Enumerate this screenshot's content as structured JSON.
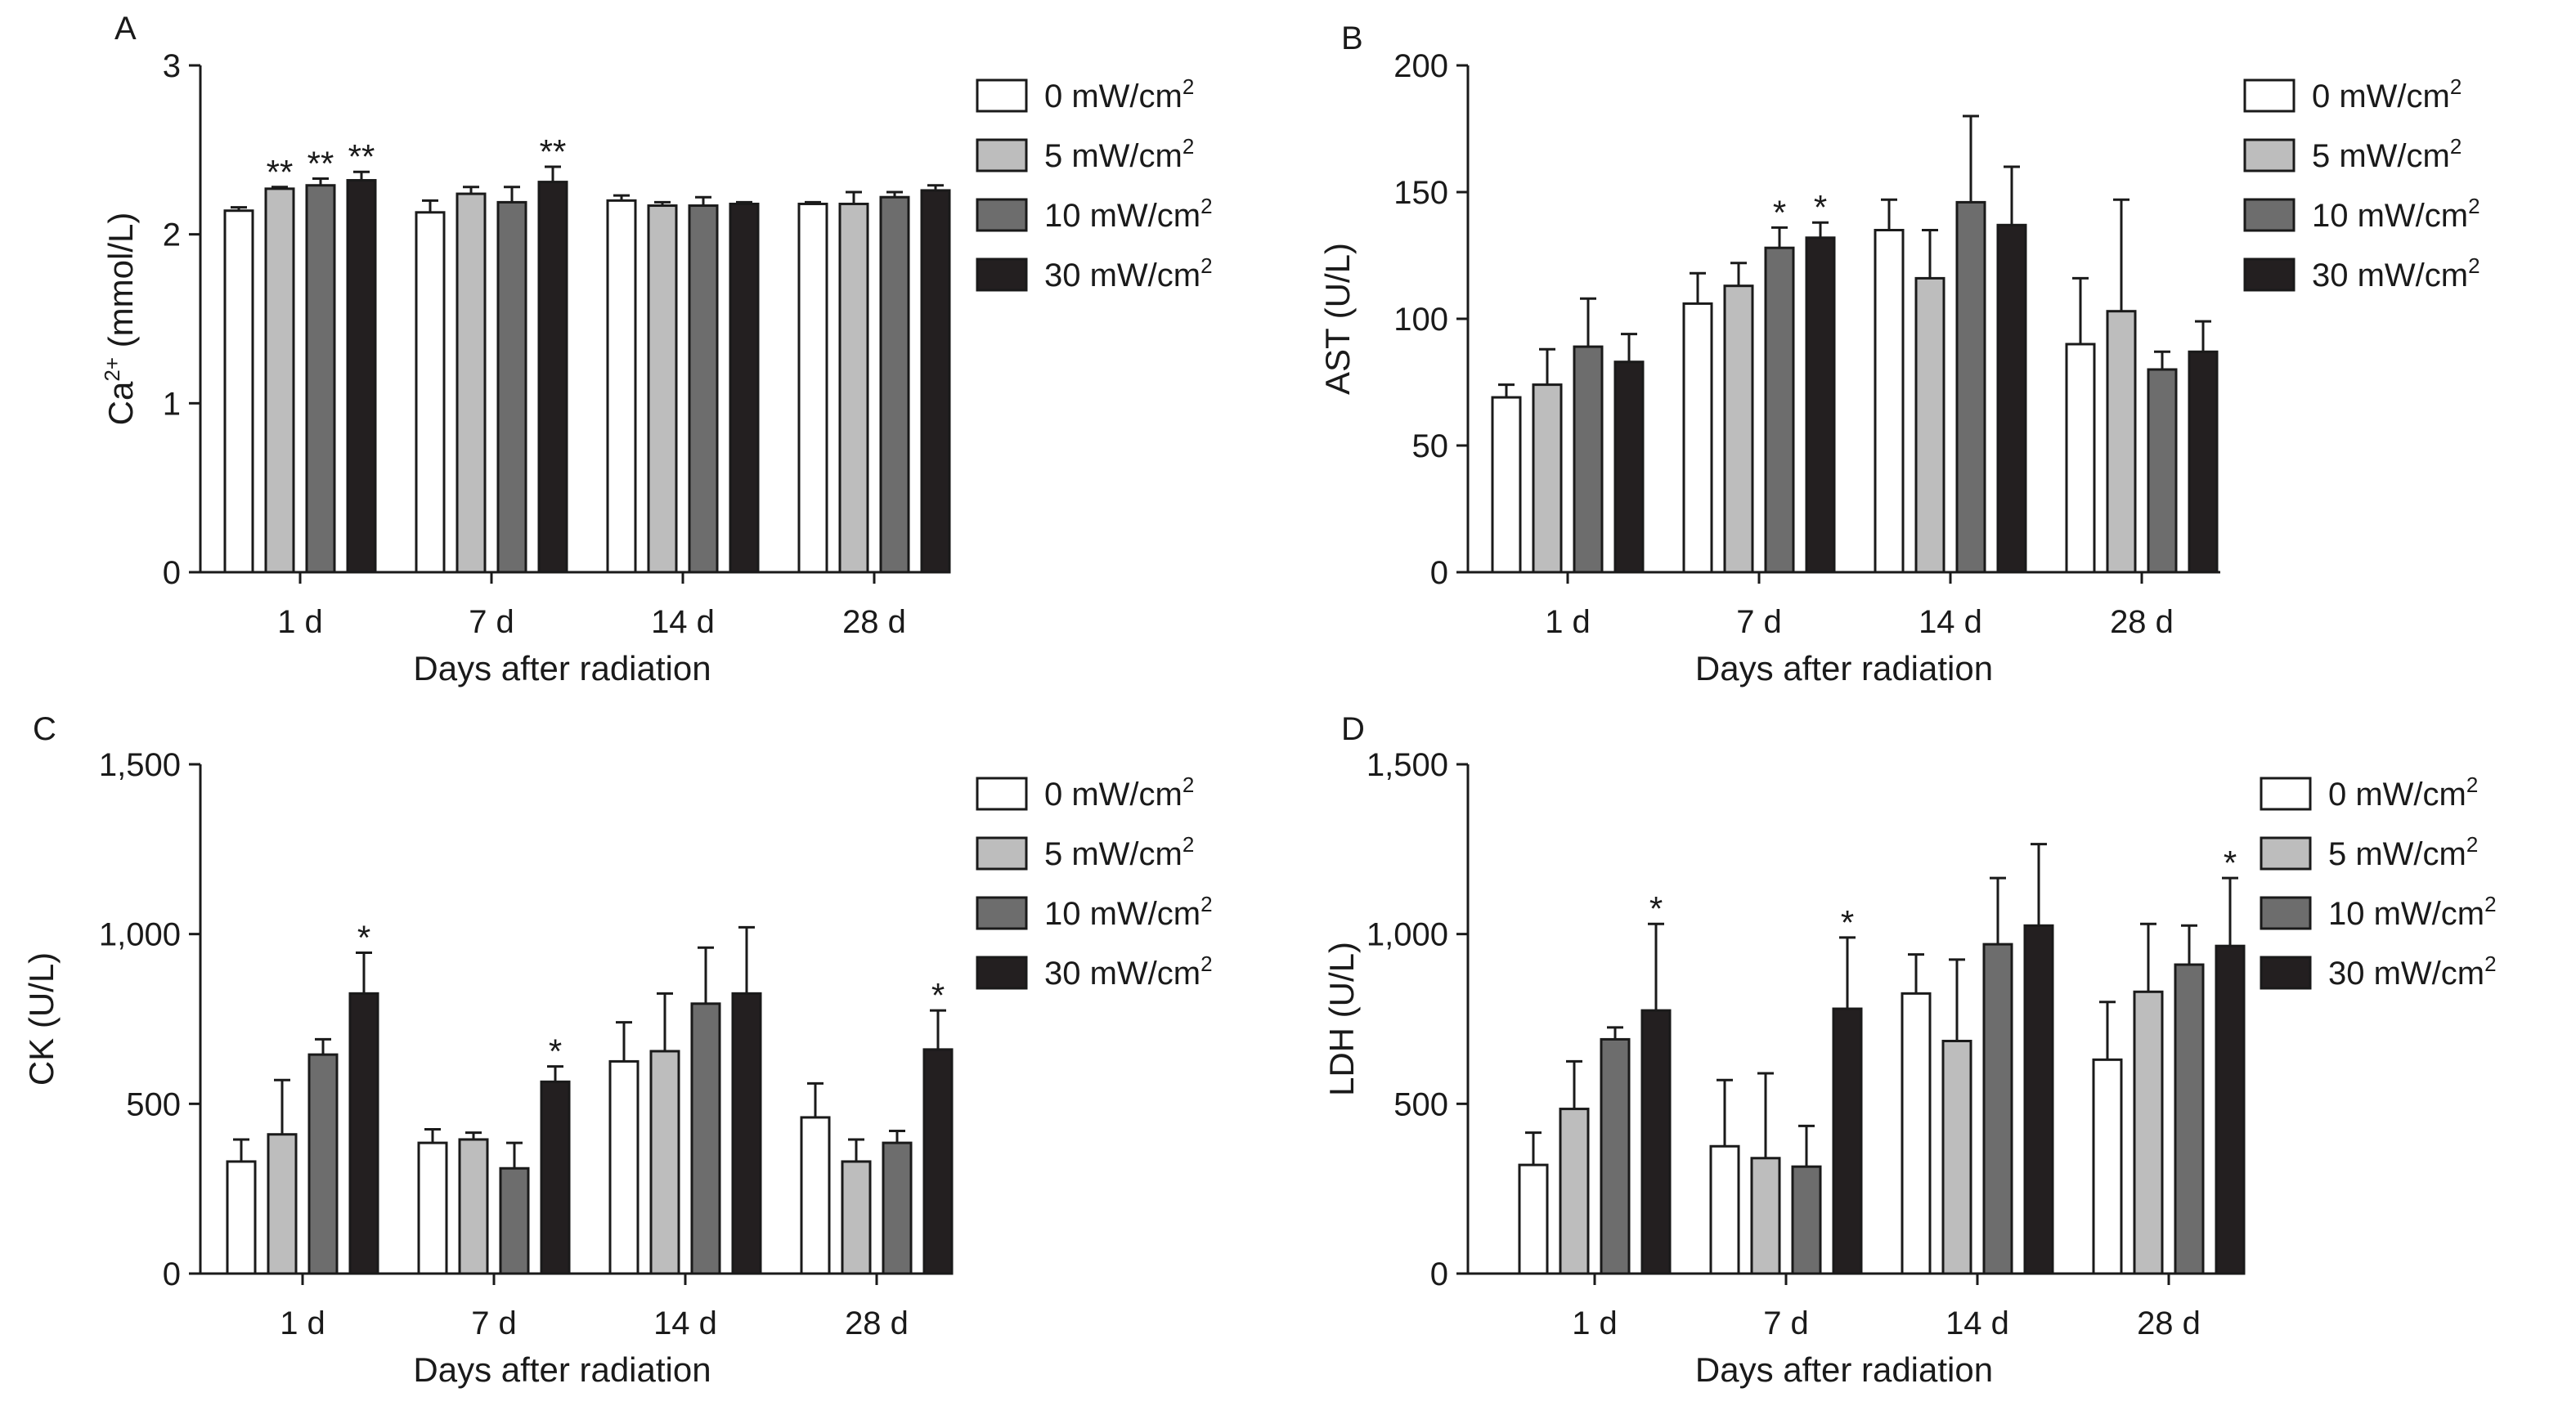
{
  "figure": {
    "x_title": "Days after radiation",
    "categories": [
      "1 d",
      "7 d",
      "14 d",
      "28 d"
    ],
    "legend": [
      {
        "base": "0 mW/cm",
        "sup": "2"
      },
      {
        "base": "5 mW/cm",
        "sup": "2"
      },
      {
        "base": "10 mW/cm",
        "sup": "2"
      },
      {
        "base": "30 mW/cm",
        "sup": "2"
      }
    ],
    "series_colors": [
      "#ffffff",
      "#bdbdbd",
      "#6d6d6d",
      "#231f20"
    ]
  },
  "chart_data": [
    {
      "type": "bar",
      "panel": "A",
      "ylabel": {
        "base": "Ca",
        "sup": "2+",
        "rest": " (mmol/L)"
      },
      "xlabel": "Days after radiation",
      "categories": [
        "1 d",
        "7 d",
        "14 d",
        "28 d"
      ],
      "ylim": [
        0,
        3
      ],
      "yticks": [
        0,
        1,
        2,
        3
      ],
      "ytick_labels": [
        "0",
        "1",
        "2",
        "3"
      ],
      "series": [
        {
          "name": "0 mW/cm2",
          "values": [
            2.14,
            2.13,
            2.2,
            2.18
          ],
          "errors": [
            0.02,
            0.07,
            0.03,
            0.01
          ],
          "sig": [
            "",
            "",
            "",
            ""
          ]
        },
        {
          "name": "5 mW/cm2",
          "values": [
            2.27,
            2.24,
            2.17,
            2.18
          ],
          "errors": [
            0.01,
            0.04,
            0.02,
            0.07
          ],
          "sig": [
            "**",
            "",
            "",
            ""
          ]
        },
        {
          "name": "10 mW/cm2",
          "values": [
            2.29,
            2.19,
            2.17,
            2.22
          ],
          "errors": [
            0.04,
            0.09,
            0.05,
            0.03
          ],
          "sig": [
            "**",
            "",
            "",
            ""
          ]
        },
        {
          "name": "30 mW/cm2",
          "values": [
            2.32,
            2.31,
            2.18,
            2.26
          ],
          "errors": [
            0.05,
            0.09,
            0.01,
            0.03
          ],
          "sig": [
            "**",
            "**",
            "",
            ""
          ]
        }
      ],
      "legend_position": "top-right"
    },
    {
      "type": "bar",
      "panel": "B",
      "ylabel": {
        "base": "AST (U/L)",
        "sup": "",
        "rest": ""
      },
      "xlabel": "Days after radiation",
      "categories": [
        "1 d",
        "7 d",
        "14 d",
        "28 d"
      ],
      "ylim": [
        0,
        200
      ],
      "yticks": [
        0,
        50,
        100,
        150,
        200
      ],
      "ytick_labels": [
        "0",
        "50",
        "100",
        "150",
        "200"
      ],
      "series": [
        {
          "name": "0 mW/cm2",
          "values": [
            69,
            106,
            135,
            90
          ],
          "errors": [
            5,
            12,
            12,
            26
          ],
          "sig": [
            "",
            "",
            "",
            ""
          ]
        },
        {
          "name": "5 mW/cm2",
          "values": [
            74,
            113,
            116,
            103
          ],
          "errors": [
            14,
            9,
            19,
            44
          ],
          "sig": [
            "",
            "",
            "",
            ""
          ]
        },
        {
          "name": "10 mW/cm2",
          "values": [
            89,
            128,
            146,
            80
          ],
          "errors": [
            19,
            8,
            34,
            7
          ],
          "sig": [
            "",
            "*",
            "",
            ""
          ]
        },
        {
          "name": "30 mW/cm2",
          "values": [
            83,
            132,
            137,
            87
          ],
          "errors": [
            11,
            6,
            23,
            12
          ],
          "sig": [
            "",
            "*",
            "",
            ""
          ]
        }
      ],
      "legend_position": "top-right"
    },
    {
      "type": "bar",
      "panel": "C",
      "ylabel": {
        "base": "CK (U/L)",
        "sup": "",
        "rest": ""
      },
      "xlabel": "Days after radiation",
      "categories": [
        "1 d",
        "7 d",
        "14 d",
        "28 d"
      ],
      "ylim": [
        0,
        1500
      ],
      "yticks": [
        0,
        500,
        1000,
        1500
      ],
      "ytick_labels": [
        "0",
        "500",
        "1,000",
        "1,500"
      ],
      "series": [
        {
          "name": "0 mW/cm2",
          "values": [
            330,
            385,
            625,
            460
          ],
          "errors": [
            65,
            40,
            115,
            100
          ],
          "sig": [
            "",
            "",
            "",
            ""
          ]
        },
        {
          "name": "5 mW/cm2",
          "values": [
            410,
            395,
            655,
            330
          ],
          "errors": [
            160,
            20,
            170,
            65
          ],
          "sig": [
            "",
            "",
            "",
            ""
          ]
        },
        {
          "name": "10 mW/cm2",
          "values": [
            645,
            310,
            795,
            385
          ],
          "errors": [
            45,
            75,
            165,
            35
          ],
          "sig": [
            "",
            "",
            "",
            ""
          ]
        },
        {
          "name": "30 mW/cm2",
          "values": [
            825,
            565,
            825,
            660
          ],
          "errors": [
            120,
            45,
            195,
            115
          ],
          "sig": [
            "*",
            "*",
            "",
            "*"
          ]
        }
      ],
      "legend_position": "top-right"
    },
    {
      "type": "bar",
      "panel": "D",
      "ylabel": {
        "base": "LDH (U/L)",
        "sup": "",
        "rest": ""
      },
      "xlabel": "Days after radiation",
      "categories": [
        "1 d",
        "7 d",
        "14 d",
        "28 d"
      ],
      "ylim": [
        0,
        1500
      ],
      "yticks": [
        0,
        500,
        1000,
        1500
      ],
      "ytick_labels": [
        "0",
        "500",
        "1,000",
        "1,500"
      ],
      "series": [
        {
          "name": "0 mW/cm2",
          "values": [
            320,
            375,
            825,
            630
          ],
          "errors": [
            95,
            195,
            115,
            170
          ],
          "sig": [
            "",
            "",
            "",
            ""
          ]
        },
        {
          "name": "5 mW/cm2",
          "values": [
            485,
            340,
            685,
            830
          ],
          "errors": [
            140,
            250,
            240,
            200
          ],
          "sig": [
            "",
            "",
            "",
            ""
          ]
        },
        {
          "name": "10 mW/cm2",
          "values": [
            690,
            315,
            970,
            910
          ],
          "errors": [
            35,
            120,
            195,
            115
          ],
          "sig": [
            "",
            "",
            "",
            ""
          ]
        },
        {
          "name": "30 mW/cm2",
          "values": [
            775,
            780,
            1025,
            965
          ],
          "errors": [
            255,
            210,
            240,
            200
          ],
          "sig": [
            "*",
            "*",
            "",
            "*"
          ]
        }
      ],
      "legend_position": "top-right"
    }
  ]
}
